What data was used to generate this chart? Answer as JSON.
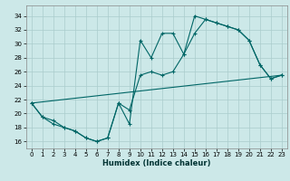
{
  "title": "",
  "xlabel": "Humidex (Indice chaleur)",
  "bg_color": "#cce8e8",
  "grid_color": "#aacccc",
  "line_color": "#006666",
  "xlim": [
    -0.5,
    23.5
  ],
  "ylim": [
    15,
    35.5
  ],
  "xticks": [
    0,
    1,
    2,
    3,
    4,
    5,
    6,
    7,
    8,
    9,
    10,
    11,
    12,
    13,
    14,
    15,
    16,
    17,
    18,
    19,
    20,
    21,
    22,
    23
  ],
  "yticks": [
    16,
    18,
    20,
    22,
    24,
    26,
    28,
    30,
    32,
    34
  ],
  "series1_x": [
    0,
    1,
    2,
    3,
    4,
    5,
    6,
    7,
    8,
    9,
    10,
    11,
    12,
    13,
    14,
    15,
    16,
    17,
    18,
    19,
    20,
    21,
    22,
    23
  ],
  "series1_y": [
    21.5,
    19.5,
    19.0,
    18.0,
    17.5,
    16.5,
    16.0,
    16.5,
    21.5,
    18.5,
    30.5,
    28.0,
    31.5,
    31.5,
    28.5,
    34.0,
    33.5,
    33.0,
    32.5,
    32.0,
    30.5,
    27.0,
    25.0,
    25.5
  ],
  "series2_x": [
    0,
    1,
    2,
    3,
    4,
    5,
    6,
    7,
    8,
    9,
    10,
    11,
    12,
    13,
    14,
    15,
    16,
    17,
    18,
    19,
    20,
    21,
    22,
    23
  ],
  "series2_y": [
    21.5,
    19.5,
    18.5,
    18.0,
    17.5,
    16.5,
    16.0,
    16.5,
    21.5,
    20.5,
    25.5,
    26.0,
    25.5,
    26.0,
    28.5,
    31.5,
    33.5,
    33.0,
    32.5,
    32.0,
    30.5,
    27.0,
    25.0,
    25.5
  ],
  "series3_x": [
    0,
    23
  ],
  "series3_y": [
    21.5,
    25.5
  ]
}
